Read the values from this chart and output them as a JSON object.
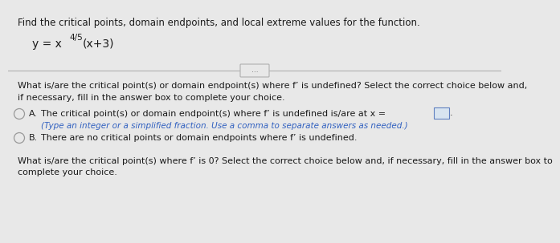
{
  "bg_color": "#e8e8e8",
  "title_text": "Find the critical points, domain endpoints, and local extreme values for the function.",
  "func_y_eq": "y = x",
  "func_exp": "4/5",
  "func_rest": "(x+3)",
  "divider_btn_text": "...",
  "question1_line1": "What is/are the critical point(s) or domain endpoint(s) where f’ is undefined? Select the correct choice below and,",
  "question1_line2": "if necessary, fill in the answer box to complete your choice.",
  "optA_label": "A.",
  "optA_text": "The critical point(s) or domain endpoint(s) where f’ is undefined is/are at x =",
  "optA_sub": "(Type an integer or a simplified fraction. Use a comma to separate answers as needed.)",
  "optB_label": "B.",
  "optB_text": "There are no critical points or domain endpoints where f’ is undefined.",
  "question2_line1": "What is/are the critical point(s) where f’ is 0? Select the correct choice below and, if necessary, fill in the answer box to",
  "question2_line2": "complete your choice.",
  "circle_color": "#999999",
  "text_color": "#1a1a1a",
  "blue_color": "#3060c0",
  "box_fill": "#d8e4f0",
  "box_edge": "#6080c0",
  "fs_title": 8.5,
  "fs_body": 8.0,
  "fs_sub": 7.5,
  "fs_func": 10.0,
  "fs_exp": 7.5
}
